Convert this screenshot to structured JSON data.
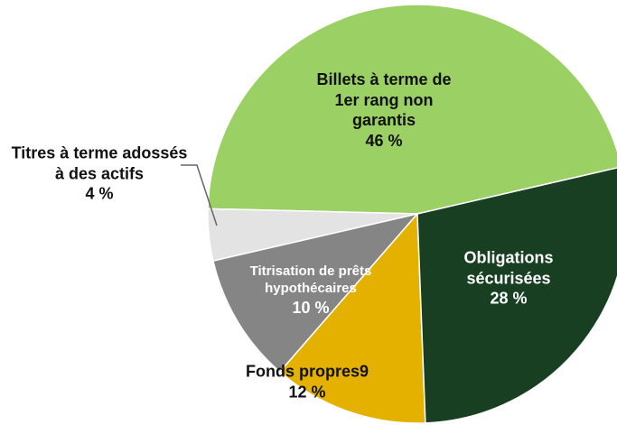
{
  "chart_data": {
    "type": "pie",
    "categories": [
      "Billets à terme de 1er rang non garantis",
      "Titres à terme adossés à des actifs",
      "Titrisation de prêts hypothécaires",
      "Fonds propres9",
      "Obligations sécurisées"
    ],
    "values": [
      46,
      4,
      10,
      12,
      28
    ],
    "value_labels": [
      "46 %",
      "4 %",
      "10 %",
      "12 %",
      "28 %"
    ],
    "colors": [
      "#9bd064",
      "#e3e3e3",
      "#858585",
      "#e5b100",
      "#183f22"
    ]
  }
}
